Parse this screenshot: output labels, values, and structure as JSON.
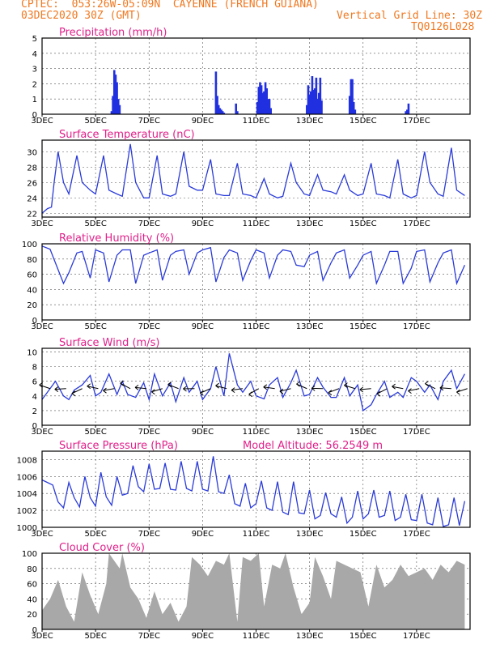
{
  "header": {
    "line1": "CPTEC:  053:26W-05:09N  CAYENNE (FRENCH GUIANA)",
    "line2_left": "03DEC2020 30Z (GMT)",
    "line2_right": "Vertical Grid Line: 30Z",
    "line3_right": "TQ0126L028"
  },
  "colors": {
    "title": "#e0208a",
    "header": "#f07820",
    "line": "#2a3bd8",
    "bar": "#2030e0",
    "cloud": "#a8a8a8",
    "wind_arrow": "#000000"
  },
  "x_ticks": [
    "3DEC",
    "5DEC",
    "7DEC",
    "9DEC",
    "11DEC",
    "13DEC",
    "15DEC",
    "17DEC"
  ],
  "chart_data": [
    {
      "type": "bar",
      "title": "Precipitation (mm/h)",
      "ylim": [
        0,
        5
      ],
      "yticks": [
        0,
        1,
        2,
        3,
        4,
        5
      ],
      "x_unit": "days since 3DEC",
      "x": [
        2.6,
        2.65,
        2.7,
        2.75,
        2.8,
        2.85,
        2.9,
        6.5,
        6.55,
        6.6,
        6.65,
        6.7,
        6.75,
        6.8,
        7.25,
        7.3,
        8.05,
        8.1,
        8.15,
        8.2,
        8.25,
        8.3,
        8.35,
        8.4,
        8.45,
        8.5,
        8.55,
        9.9,
        9.95,
        10.0,
        10.05,
        10.1,
        10.15,
        10.2,
        10.25,
        10.3,
        10.35,
        10.4,
        10.45,
        11.5,
        11.55,
        11.6,
        11.65,
        11.7,
        13.6,
        13.65,
        13.7
      ],
      "values": [
        0.2,
        1.2,
        2.9,
        2.6,
        2.1,
        1.0,
        0.6,
        2.8,
        1.2,
        0.6,
        0.4,
        0.3,
        0.2,
        0.1,
        0.7,
        0.2,
        0.8,
        1.8,
        2.1,
        1.9,
        1.4,
        1.5,
        2.1,
        1.7,
        1.0,
        1.0,
        0.4,
        0.6,
        1.9,
        1.3,
        1.5,
        2.5,
        1.6,
        1.7,
        2.4,
        1.0,
        1.4,
        2.4,
        0.9,
        1.2,
        2.3,
        2.3,
        0.8,
        0.3,
        0.2,
        0.3,
        0.7
      ]
    },
    {
      "type": "line",
      "title": "Surface Temperature (nC)",
      "ylim": [
        21.5,
        31.5
      ],
      "yticks": [
        22,
        24,
        26,
        28,
        30
      ],
      "x": [
        0,
        0.2,
        0.35,
        0.45,
        0.6,
        0.8,
        1,
        1.3,
        1.5,
        1.8,
        2,
        2.3,
        2.5,
        2.8,
        3,
        3.3,
        3.5,
        3.8,
        4,
        4.3,
        4.5,
        4.8,
        5,
        5.3,
        5.5,
        5.8,
        6,
        6.3,
        6.5,
        6.8,
        7,
        7.3,
        7.5,
        7.8,
        8,
        8.3,
        8.5,
        8.8,
        9,
        9.3,
        9.5,
        9.8,
        10,
        10.3,
        10.5,
        10.8,
        11,
        11.3,
        11.5,
        11.8,
        12,
        12.3,
        12.5,
        12.8,
        13,
        13.3,
        13.5,
        13.8,
        14,
        14.3,
        14.5,
        14.8,
        15,
        15.3,
        15.5,
        15.8
      ],
      "values": [
        22,
        22.6,
        22.8,
        26,
        30,
        26,
        24.5,
        29.5,
        26,
        25,
        24.5,
        29.5,
        25,
        24.5,
        24.2,
        31,
        26,
        24,
        24,
        29.5,
        24.5,
        24.2,
        24.5,
        30,
        25.5,
        25,
        25,
        29,
        24.5,
        24.3,
        24.3,
        28.5,
        24.5,
        24.3,
        24,
        26.5,
        24.5,
        24,
        24.2,
        28.5,
        26,
        24.5,
        24.3,
        27,
        25,
        24.8,
        24.5,
        27,
        25,
        24.3,
        24.5,
        28.5,
        24.5,
        24.3,
        24,
        29,
        24.5,
        24,
        24.3,
        30,
        26,
        24.5,
        24.2,
        30.5,
        25,
        24.3
      ]
    },
    {
      "type": "line",
      "title": "Relative Humidity (%)",
      "ylim": [
        0,
        100
      ],
      "yticks": [
        0,
        20,
        40,
        60,
        80,
        100
      ],
      "x": [
        0,
        0.3,
        0.5,
        0.8,
        1,
        1.3,
        1.5,
        1.8,
        2,
        2.3,
        2.5,
        2.8,
        3,
        3.3,
        3.5,
        3.8,
        4,
        4.3,
        4.5,
        4.8,
        5,
        5.3,
        5.5,
        5.8,
        6,
        6.3,
        6.5,
        6.8,
        7,
        7.3,
        7.5,
        7.8,
        8,
        8.3,
        8.5,
        8.8,
        9,
        9.3,
        9.5,
        9.8,
        10,
        10.3,
        10.5,
        10.8,
        11,
        11.3,
        11.5,
        11.8,
        12,
        12.3,
        12.5,
        12.8,
        13,
        13.3,
        13.5,
        13.8,
        14,
        14.3,
        14.5,
        14.8,
        15,
        15.3,
        15.5,
        15.8
      ],
      "values": [
        97,
        93,
        75,
        48,
        62,
        88,
        90,
        55,
        92,
        88,
        50,
        85,
        92,
        92,
        48,
        85,
        88,
        92,
        52,
        85,
        90,
        92,
        60,
        88,
        92,
        95,
        50,
        82,
        92,
        88,
        52,
        78,
        92,
        88,
        55,
        85,
        92,
        90,
        72,
        70,
        85,
        90,
        52,
        75,
        88,
        92,
        55,
        72,
        85,
        90,
        48,
        72,
        90,
        90,
        48,
        68,
        90,
        92,
        50,
        75,
        88,
        92,
        48,
        72
      ]
    },
    {
      "type": "line",
      "title": "Surface Wind (m/s)",
      "ylim": [
        0,
        10.5
      ],
      "yticks": [
        0,
        2,
        4,
        6,
        8,
        10
      ],
      "x": [
        0,
        0.2,
        0.5,
        0.8,
        1,
        1.2,
        1.5,
        1.8,
        2,
        2.2,
        2.5,
        2.8,
        3,
        3.2,
        3.5,
        3.8,
        4,
        4.2,
        4.5,
        4.8,
        5,
        5.3,
        5.5,
        5.8,
        6,
        6.3,
        6.5,
        6.8,
        7,
        7.3,
        7.5,
        7.8,
        8,
        8.3,
        8.5,
        8.8,
        9,
        9.3,
        9.5,
        9.8,
        10,
        10.3,
        10.5,
        10.8,
        11,
        11.3,
        11.5,
        11.8,
        12,
        12.3,
        12.5,
        12.8,
        13,
        13.3,
        13.5,
        13.8,
        14,
        14.3,
        14.5,
        14.8,
        15,
        15.3,
        15.5,
        15.8
      ],
      "values": [
        3.5,
        4.5,
        6,
        4,
        3.5,
        4.8,
        5.5,
        6.8,
        4,
        4.5,
        7,
        4.2,
        6,
        4.2,
        3.8,
        5.8,
        3.5,
        7,
        4,
        5.8,
        3.2,
        6.5,
        4.5,
        6,
        3.5,
        5,
        8,
        4,
        9.8,
        5.5,
        4.5,
        6,
        4,
        3.6,
        5.5,
        6.5,
        3.8,
        5.8,
        7.5,
        4,
        4.2,
        6.5,
        5.2,
        3.8,
        3.8,
        6.5,
        4,
        5.5,
        2,
        2.8,
        4.2,
        6,
        3.8,
        4.5,
        3.8,
        6.5,
        6,
        4.5,
        5.5,
        3.5,
        6,
        7.5,
        5,
        7
      ]
    },
    {
      "type": "line",
      "title": "Surface Pressure (hPa)",
      "annotation": "Model Altitude: 56.2549  m",
      "ylim": [
        1000,
        1009
      ],
      "yticks": [
        1000,
        1002,
        1004,
        1006,
        1008
      ],
      "x": [
        0,
        0.4,
        0.6,
        0.8,
        1,
        1.2,
        1.4,
        1.6,
        1.8,
        2,
        2.2,
        2.4,
        2.6,
        2.8,
        3,
        3.2,
        3.4,
        3.6,
        3.8,
        4,
        4.2,
        4.4,
        4.6,
        4.8,
        5,
        5.2,
        5.4,
        5.6,
        5.8,
        6,
        6.2,
        6.4,
        6.6,
        6.8,
        7,
        7.2,
        7.4,
        7.6,
        7.8,
        8,
        8.2,
        8.4,
        8.6,
        8.8,
        9,
        9.2,
        9.4,
        9.6,
        9.8,
        10,
        10.2,
        10.4,
        10.6,
        10.8,
        11,
        11.2,
        11.4,
        11.6,
        11.8,
        12,
        12.2,
        12.4,
        12.6,
        12.8,
        13,
        13.2,
        13.4,
        13.6,
        13.8,
        14,
        14.2,
        14.4,
        14.6,
        14.8,
        15,
        15.2,
        15.4,
        15.6,
        15.8
      ],
      "values": [
        1005.6,
        1005,
        1003,
        1002.3,
        1005.3,
        1003.5,
        1002.4,
        1006,
        1003.5,
        1002.5,
        1006.5,
        1003.6,
        1002.6,
        1006,
        1003.8,
        1004,
        1007.3,
        1004.8,
        1004.2,
        1007.5,
        1004.5,
        1004.6,
        1007.6,
        1004.5,
        1004.4,
        1007.8,
        1004.6,
        1004.3,
        1007.8,
        1004.5,
        1004.3,
        1008.4,
        1004.2,
        1004,
        1006.2,
        1002.8,
        1002.5,
        1005.2,
        1002.3,
        1002.8,
        1005.5,
        1002.3,
        1002,
        1005.4,
        1001.8,
        1001.5,
        1005.4,
        1001.7,
        1001.6,
        1004.4,
        1001,
        1001.4,
        1004.1,
        1001.6,
        1001.2,
        1003.6,
        1000.5,
        1001.2,
        1004.3,
        1001,
        1001.6,
        1004.4,
        1001.2,
        1001.4,
        1004.3,
        1000.8,
        1001.2,
        1003.9,
        1000.9,
        1000.8,
        1003.9,
        1000.5,
        1000.3,
        1003.5,
        1000.1,
        1000.3,
        1003.5,
        1000.2,
        1003.1
      ]
    },
    {
      "type": "area",
      "title": "Cloud Cover (%)",
      "ylim": [
        0,
        100
      ],
      "yticks": [
        0,
        20,
        40,
        60,
        80,
        100
      ],
      "x": [
        0,
        0.3,
        0.6,
        0.9,
        1.2,
        1.5,
        1.8,
        2.1,
        2.4,
        2.5,
        2.6,
        2.9,
        3,
        3.3,
        3.6,
        3.9,
        4.2,
        4.5,
        4.8,
        5.1,
        5.4,
        5.6,
        5.9,
        6.2,
        6.5,
        6.8,
        7,
        7.3,
        7.5,
        7.8,
        8.1,
        8.3,
        8.6,
        8.9,
        9.1,
        9.4,
        9.7,
        10,
        10.2,
        10.5,
        10.8,
        11,
        11.3,
        11.6,
        11.9,
        12.2,
        12.5,
        12.8,
        13.1,
        13.4,
        13.7,
        14,
        14.3,
        14.6,
        14.9,
        15.2,
        15.5,
        15.8
      ],
      "values": [
        25,
        40,
        65,
        30,
        10,
        75,
        45,
        20,
        60,
        100,
        95,
        80,
        100,
        55,
        40,
        15,
        50,
        20,
        35,
        10,
        30,
        95,
        85,
        70,
        90,
        85,
        100,
        10,
        95,
        90,
        100,
        30,
        85,
        80,
        100,
        55,
        20,
        35,
        95,
        70,
        40,
        90,
        85,
        80,
        75,
        30,
        85,
        55,
        65,
        85,
        70,
        75,
        80,
        65,
        85,
        75,
        90,
        85
      ]
    }
  ]
}
